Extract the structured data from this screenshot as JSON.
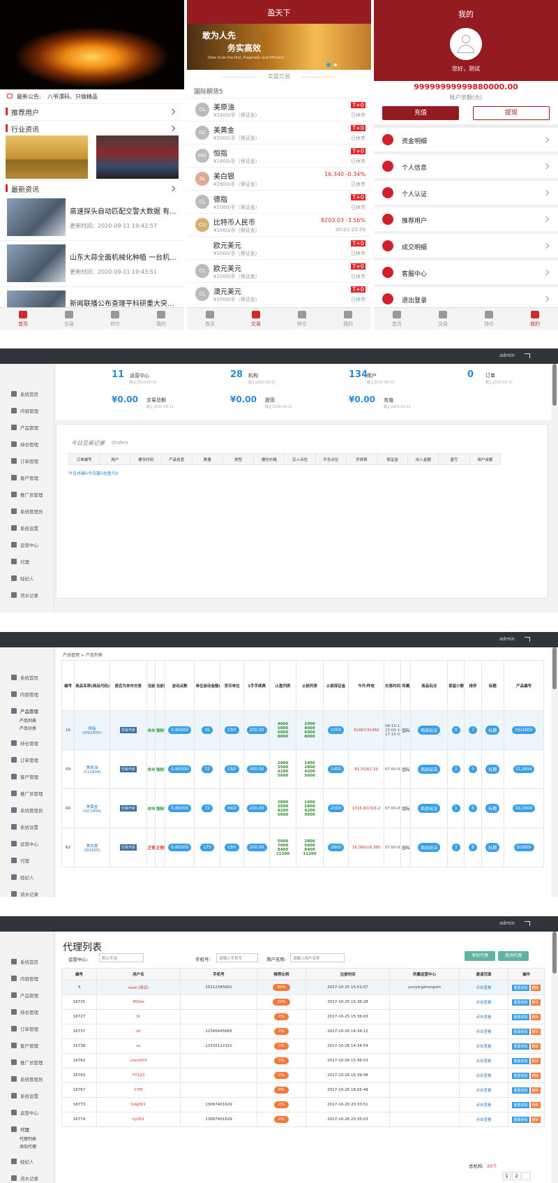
{
  "tabbar": [
    "首页",
    "交易",
    "持仓",
    "我的"
  ],
  "mobile_home": {
    "notice_label": "最新公告:",
    "notice": "八爷漂码、只做精品",
    "sections": [
      "推荐用户",
      "行业资讯",
      "最新资讯"
    ],
    "news": [
      {
        "title": "高速探头自动匹配交警大数据 有...",
        "time": "更新时间：2020-09-11 19:42:57"
      },
      {
        "title": "山东大蒜全面机械化种植 一台机...",
        "time": "更新时间：2020-09-11 19:43:51"
      },
      {
        "title": "新闻联播公布查理平科研重大突..."
      }
    ]
  },
  "mobile_trade": {
    "title": "盈天下",
    "banner": [
      "敢为人先",
      "务实高效",
      "Dare to be the first, Pragmatic and Efficient"
    ],
    "tab": "实盘交易",
    "group": "国际期货5",
    "products": [
      {
        "code": "CL",
        "name": "美原油",
        "price": "¥1400/手（保证金）",
        "quote": "T+0",
        "status": "已休市"
      },
      {
        "code": "GC",
        "name": "美黄金",
        "price": "¥2000/手（保证金）",
        "quote": "T+0",
        "status": "已休市"
      },
      {
        "code": "HSI",
        "name": "恒指",
        "price": "¥1800/手（保证金）",
        "quote": "T+0",
        "status": "已休市"
      },
      {
        "code": "SL",
        "name": "美白银",
        "price": "¥2800/手（保证金）",
        "quote": "16.340  -0.34%",
        "status": "已休市"
      },
      {
        "code": "CL",
        "name": "德指",
        "price": "¥1000/手（保证金）",
        "quote": "T+0",
        "status": "已休市"
      },
      {
        "code": "CU",
        "name": "比特币人民币",
        "price": "¥1000/手（保证金）",
        "quote": "8203.03  -3.56%",
        "status": "00:01-23:59"
      },
      {
        "code": null,
        "name": "欧元美元",
        "price": "¥1000/手（保证金）",
        "quote": "T+0",
        "status": "已休市"
      },
      {
        "code": "CL",
        "name": "欧元美元",
        "price": "¥1000/手（保证金）",
        "quote": "T+0",
        "status": "已休市"
      },
      {
        "code": "CL",
        "name": "澳元美元",
        "price": "¥1000/手（保证金）",
        "quote": "T+0",
        "status": "已休市"
      }
    ]
  },
  "mobile_mine": {
    "title": "我的",
    "greeting": "您好，测试",
    "balance": "99999999999880000.00",
    "balance_label": "账户余额(元)",
    "buttons": [
      "充值",
      "提现"
    ],
    "menu": [
      "资金明细",
      "个人信息",
      "个人认证",
      "推荐用户",
      "成交明细",
      "客服中心",
      "退出登录"
    ]
  },
  "admin": {
    "user": "admin",
    "sidebar": [
      "系统首页",
      "内容管理",
      "产品管理",
      "持仓管理",
      "订单管理",
      "客户管理",
      "推广员管理",
      "系统管理员",
      "系统设置",
      "运营中心",
      "代理",
      "经纪人",
      "流水记录"
    ]
  },
  "dashboard": {
    "stats": [
      {
        "value": "11",
        "label": "运营中心",
        "note": "截止2020-09-11"
      },
      {
        "value": "28",
        "label": "机构",
        "note": "截止2020-09-11"
      },
      {
        "value": "134",
        "label": "用户",
        "note": "截止2020-09-11"
      },
      {
        "value": "0",
        "label": "订单",
        "note": "截止2020-09-11"
      }
    ],
    "totals": [
      {
        "value": "¥0.00",
        "label": "交易总额",
        "note": "截止2020-09-11"
      },
      {
        "value": "¥0.00",
        "label": "提现",
        "note": "截止2020-09-11"
      },
      {
        "value": "¥0.00",
        "label": "充值",
        "note": "截止2020-09-11"
      }
    ],
    "orders_title": "今日交易记录",
    "orders_subtitle": "Orders",
    "columns": [
      "订单编号",
      "用户",
      "建仓时间",
      "产品信息",
      "数量",
      "类型",
      "建仓价格",
      "买入点位",
      "平仓点位",
      "手续费",
      "保证金",
      "出入金额",
      "盈亏",
      "用户余额"
    ],
    "footer": "今日总输0今日赢0总盈亏0"
  },
  "product_list": {
    "breadcrumb": "产品管理 > 产品列表",
    "submenu": [
      "产品列表",
      "产品分类"
    ],
    "columns": [
      "编号",
      "商品名称(商品代码)",
      "是否为休市交易",
      "当前交易状态",
      "当前持仓状态",
      "波动点数",
      "单位波动金额(每手)",
      "货币单位",
      "1手手续费",
      "止盈列表",
      "止损列表",
      "止损保证金",
      "今开/昨收",
      "交易时间",
      "所属分类",
      "商品玩法",
      "保留小数",
      "排序",
      "标题",
      "产品编号"
    ],
    "rows": [
      {
        "id": "10",
        "name": "恒指",
        "code": "(HSI1805)",
        "switch": "交易开启",
        "trade_state": "休市",
        "hold_state": "强制平仓",
        "state_color": "#2e9a3a",
        "points": "0.80000",
        "unit_amount": "45",
        "currency": "CNY",
        "fee": "200.00",
        "take_profit": [
          "4000",
          "5000",
          "6000",
          "8000"
        ],
        "stop_loss": [
          "2000",
          "4000",
          "6000",
          "8000"
        ],
        "margin": "1000",
        "open_close": "31467/31450",
        "trade_time": [
          "09:15-12:00",
          "13:00-16:30",
          "17:15-01:00"
        ],
        "category": "国际期货5",
        "play": "商品玩法",
        "decimals": "0",
        "sort": "7",
        "title": "标题",
        "product_code": "HSI1805"
      },
      {
        "id": "59",
        "name": "美原油",
        "code": "(CL1804)",
        "switch": "交易开启",
        "trade_state": "休市",
        "hold_state": "强制平仓",
        "state_color": "#2e9a3a",
        "points": "0.80000",
        "unit_amount": "72",
        "currency": "CNY",
        "fee": "400.00",
        "take_profit": [
          "2800",
          "3500",
          "4200",
          "5600"
        ],
        "stop_loss": [
          "1400",
          "2800",
          "4200",
          "5600"
        ],
        "margin": "1400",
        "open_close": "61.55/61.19",
        "trade_time": [
          "07:00-05:00"
        ],
        "category": "国际期货5",
        "play": "商品玩法",
        "decimals": "2",
        "sort": "5",
        "title": "标题",
        "product_code": "CL1804"
      },
      {
        "id": "60",
        "name": "美黄金",
        "code": "(GC1804)",
        "switch": "交易开启",
        "trade_state": "休市",
        "hold_state": "强制平仓",
        "state_color": "#2e9a3a",
        "points": "0.80000",
        "unit_amount": "72",
        "currency": "HKD",
        "fee": "200.00",
        "take_profit": [
          "2800",
          "3500",
          "4200",
          "5600"
        ],
        "stop_loss": [
          "1400",
          "2800",
          "4200",
          "5600"
        ],
        "margin": "2000",
        "open_close": "1316.8/1316.2",
        "trade_time": [
          "07:00-05:00"
        ],
        "category": "国际期货5",
        "play": "商品玩法",
        "decimals": "1",
        "sort": "6",
        "title": "标题",
        "product_code": "GC1804"
      },
      {
        "id": "62",
        "name": "美白银",
        "code": "(SI1805)",
        "switch": "交易开启",
        "trade_state": "正常",
        "hold_state": "正常持仓",
        "state_color": "#e0312b",
        "points": "0.80000",
        "unit_amount": "175",
        "currency": "CNY",
        "fee": "200.00",
        "take_profit": [
          "5600",
          "7000",
          "8400",
          "11200"
        ],
        "stop_loss": [
          "2800",
          "5600",
          "8400",
          "11200"
        ],
        "margin": "2800",
        "open_close": "16.380/16.395",
        "trade_time": [
          "07:00-05:00"
        ],
        "category": "国际期货5",
        "play": "商品玩法",
        "decimals": "3",
        "sort": "8",
        "title": "标题",
        "product_code": "SI1805"
      }
    ]
  },
  "agent_list": {
    "title": "代理列表",
    "submenu": [
      "代理列表",
      "添加代理"
    ],
    "filters": [
      {
        "label": "运营中心:",
        "placeholder": "默认不选"
      },
      {
        "label": "手机号:",
        "placeholder": "请输入手机号"
      },
      {
        "label": "用户名称:",
        "placeholder": "请输入用户名称"
      }
    ],
    "buttons": [
      "添加代理",
      "查询代理"
    ],
    "columns": [
      "编号",
      "用户名",
      "手机号",
      "推荐比例",
      "注册时间",
      "所属运营中心",
      "邀请页面",
      "操作"
    ],
    "link": "点击查看",
    "actions": [
      "重置密码",
      "删除"
    ],
    "rows": [
      {
        "id": "3",
        "username": "dadi (测试)",
        "phone": "15112345601",
        "ratio": "30%",
        "reg_time": "2017-10-25 15:01:07",
        "center": "yunyingzhongxin"
      },
      {
        "id": "16725",
        "username": "800zz",
        "phone": null,
        "ratio": "20%",
        "reg_time": "2017-10-25 15:36:28",
        "center": null
      },
      {
        "id": "16727",
        "username": "llr",
        "phone": null,
        "ratio": "0%",
        "reg_time": "2017-10-25 15:36:03",
        "center": null
      },
      {
        "id": "16737",
        "username": "dz",
        "phone": "12345645665",
        "ratio": "0%",
        "reg_time": "2017-10-26 14:34:12",
        "center": null
      },
      {
        "id": "16738",
        "username": "xx",
        "phone": "12332112321",
        "ratio": "0%",
        "reg_time": "2017-10-26 14:34:54",
        "center": null
      },
      {
        "id": "16762",
        "username": "chen003",
        "phone": null,
        "ratio": "0%",
        "reg_time": "2017-10-26 15:36:53",
        "center": null
      },
      {
        "id": "16763",
        "username": "YY123",
        "phone": null,
        "ratio": "0%",
        "reg_time": "2017-10-26 15:39:48",
        "center": null
      },
      {
        "id": "16767",
        "username": "CYM",
        "phone": null,
        "ratio": "0%",
        "reg_time": "2017-10-26 18:05:48",
        "center": null
      },
      {
        "id": "16773",
        "username": "hdg001",
        "phone": "13067401629",
        "ratio": "0%",
        "reg_time": "2017-10-26 20:33:51",
        "center": null
      },
      {
        "id": "16774",
        "username": "hy001",
        "phone": "13067401629",
        "ratio": "0%",
        "reg_time": "2017-10-26 20:35:03",
        "center": null
      }
    ],
    "total_label": "总机构:",
    "total": "20个",
    "pages": [
      "1",
      "2"
    ]
  }
}
